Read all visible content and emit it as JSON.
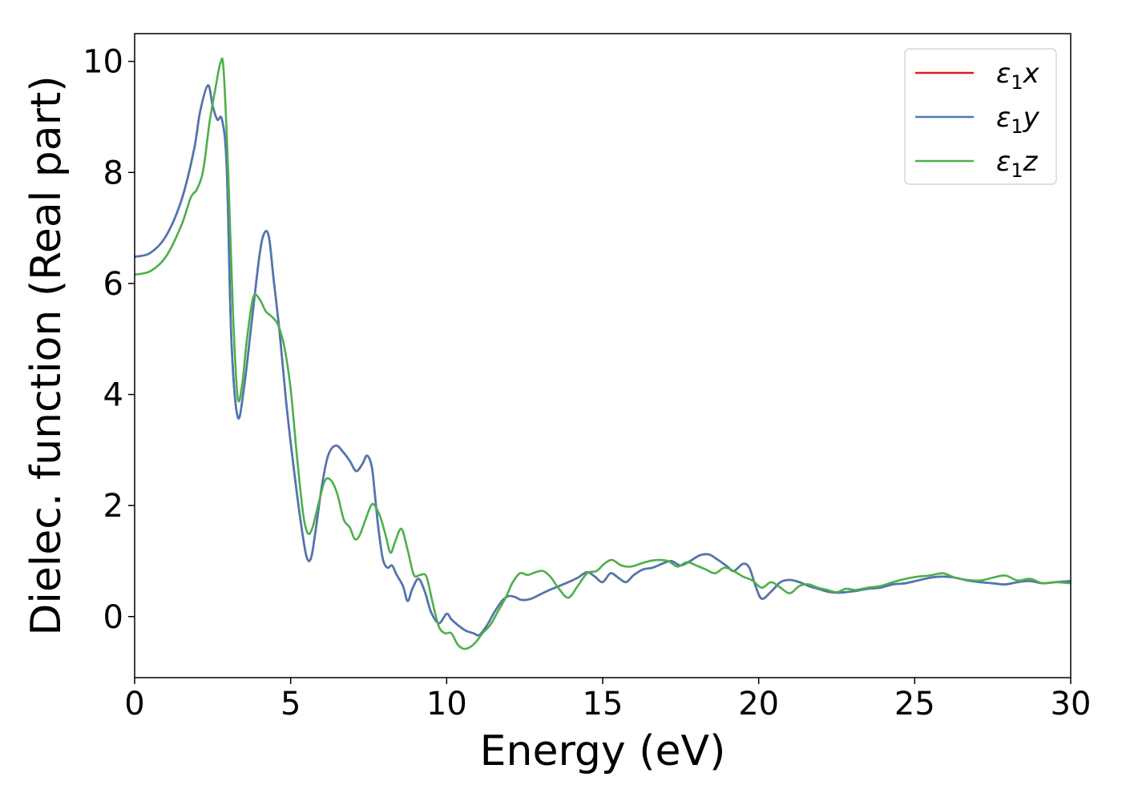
{
  "chart_data": {
    "type": "line",
    "xlabel": "Energy (eV)",
    "ylabel": "Dielec. function (Real part)",
    "xlim": [
      0,
      30
    ],
    "ylim": [
      -1.1,
      10.5
    ],
    "xticks": [
      0,
      5,
      10,
      15,
      20,
      25,
      30
    ],
    "yticks": [
      0,
      2,
      4,
      6,
      8,
      10
    ],
    "grid": false,
    "legend_position": "top-right",
    "series": [
      {
        "name": "ε1x",
        "legend_main": "ε",
        "legend_sub": "1",
        "legend_tail": "x",
        "color": "#e41a1c",
        "x": [
          0,
          0.5,
          1.0,
          1.5,
          1.9,
          2.1,
          2.35,
          2.5,
          2.65,
          2.8,
          2.95,
          3.1,
          3.3,
          3.5,
          3.75,
          4.0,
          4.15,
          4.3,
          4.45,
          4.65,
          4.85,
          5.05,
          5.3,
          5.5,
          5.65,
          5.8,
          6.0,
          6.2,
          6.45,
          6.7,
          6.9,
          7.1,
          7.3,
          7.45,
          7.6,
          7.7,
          7.8,
          7.95,
          8.1,
          8.25,
          8.4,
          8.6,
          8.75,
          8.9,
          9.1,
          9.3,
          9.5,
          9.75,
          10.0,
          10.15,
          10.35,
          10.6,
          10.85,
          11.05,
          11.3,
          11.55,
          11.8,
          12.0,
          12.2,
          12.4,
          12.7,
          13.0,
          13.3,
          13.6,
          13.9,
          14.2,
          14.5,
          14.75,
          15.0,
          15.25,
          15.5,
          15.75,
          16.0,
          16.3,
          16.6,
          16.9,
          17.2,
          17.5,
          17.8,
          18.1,
          18.4,
          18.7,
          19.0,
          19.2,
          19.5,
          19.7,
          19.9,
          20.1,
          20.4,
          20.7,
          21.0,
          21.3,
          21.6,
          21.9,
          22.2,
          22.5,
          22.8,
          23.1,
          23.5,
          23.9,
          24.3,
          24.7,
          25.1,
          25.5,
          25.9,
          26.3,
          26.7,
          27.1,
          27.5,
          27.9,
          28.3,
          28.7,
          29.1,
          29.5,
          30.0
        ],
        "y": [
          6.48,
          6.55,
          6.85,
          7.5,
          8.4,
          9.1,
          9.57,
          9.2,
          8.95,
          8.95,
          8.1,
          5.0,
          3.6,
          4.1,
          5.3,
          6.5,
          6.9,
          6.85,
          6.1,
          5.1,
          3.9,
          2.9,
          1.8,
          1.1,
          1.05,
          1.55,
          2.35,
          2.9,
          3.08,
          2.95,
          2.8,
          2.62,
          2.75,
          2.9,
          2.7,
          2.2,
          1.65,
          1.05,
          0.88,
          0.92,
          0.75,
          0.55,
          0.28,
          0.5,
          0.68,
          0.45,
          0.08,
          -0.12,
          0.05,
          -0.05,
          -0.15,
          -0.25,
          -0.3,
          -0.33,
          -0.15,
          0.1,
          0.3,
          0.37,
          0.35,
          0.3,
          0.32,
          0.4,
          0.48,
          0.55,
          0.62,
          0.7,
          0.8,
          0.72,
          0.62,
          0.78,
          0.7,
          0.62,
          0.75,
          0.85,
          0.88,
          0.95,
          1.0,
          0.92,
          1.0,
          1.1,
          1.12,
          1.02,
          0.9,
          0.82,
          0.95,
          0.88,
          0.55,
          0.32,
          0.45,
          0.62,
          0.66,
          0.62,
          0.55,
          0.5,
          0.45,
          0.43,
          0.44,
          0.46,
          0.5,
          0.52,
          0.58,
          0.6,
          0.65,
          0.7,
          0.72,
          0.7,
          0.65,
          0.62,
          0.6,
          0.58,
          0.62,
          0.64,
          0.6,
          0.62,
          0.64
        ]
      },
      {
        "name": "ε1y",
        "legend_main": "ε",
        "legend_sub": "1",
        "legend_tail": "y",
        "color": "#4a78b5",
        "x": [
          0,
          0.5,
          1.0,
          1.5,
          1.9,
          2.1,
          2.35,
          2.5,
          2.65,
          2.8,
          2.95,
          3.1,
          3.3,
          3.5,
          3.75,
          4.0,
          4.15,
          4.3,
          4.45,
          4.65,
          4.85,
          5.05,
          5.3,
          5.5,
          5.65,
          5.8,
          6.0,
          6.2,
          6.45,
          6.7,
          6.9,
          7.1,
          7.3,
          7.45,
          7.6,
          7.7,
          7.8,
          7.95,
          8.1,
          8.25,
          8.4,
          8.6,
          8.75,
          8.9,
          9.1,
          9.3,
          9.5,
          9.75,
          10.0,
          10.15,
          10.35,
          10.6,
          10.85,
          11.05,
          11.3,
          11.55,
          11.8,
          12.0,
          12.2,
          12.4,
          12.7,
          13.0,
          13.3,
          13.6,
          13.9,
          14.2,
          14.5,
          14.75,
          15.0,
          15.25,
          15.5,
          15.75,
          16.0,
          16.3,
          16.6,
          16.9,
          17.2,
          17.5,
          17.8,
          18.1,
          18.4,
          18.7,
          19.0,
          19.2,
          19.5,
          19.7,
          19.9,
          20.1,
          20.4,
          20.7,
          21.0,
          21.3,
          21.6,
          21.9,
          22.2,
          22.5,
          22.8,
          23.1,
          23.5,
          23.9,
          24.3,
          24.7,
          25.1,
          25.5,
          25.9,
          26.3,
          26.7,
          27.1,
          27.5,
          27.9,
          28.3,
          28.7,
          29.1,
          29.5,
          30.0
        ],
        "y": [
          6.48,
          6.55,
          6.85,
          7.5,
          8.4,
          9.1,
          9.57,
          9.2,
          8.95,
          8.95,
          8.1,
          5.0,
          3.6,
          4.1,
          5.3,
          6.5,
          6.9,
          6.85,
          6.1,
          5.1,
          3.9,
          2.9,
          1.8,
          1.1,
          1.05,
          1.55,
          2.35,
          2.9,
          3.08,
          2.95,
          2.8,
          2.62,
          2.75,
          2.9,
          2.7,
          2.2,
          1.65,
          1.05,
          0.88,
          0.92,
          0.75,
          0.55,
          0.28,
          0.5,
          0.68,
          0.45,
          0.08,
          -0.12,
          0.05,
          -0.05,
          -0.15,
          -0.25,
          -0.3,
          -0.33,
          -0.15,
          0.1,
          0.3,
          0.37,
          0.35,
          0.3,
          0.32,
          0.4,
          0.48,
          0.55,
          0.62,
          0.7,
          0.8,
          0.72,
          0.62,
          0.78,
          0.7,
          0.62,
          0.75,
          0.85,
          0.88,
          0.95,
          1.0,
          0.92,
          1.0,
          1.1,
          1.12,
          1.02,
          0.9,
          0.82,
          0.95,
          0.88,
          0.55,
          0.32,
          0.45,
          0.62,
          0.66,
          0.62,
          0.55,
          0.5,
          0.45,
          0.43,
          0.44,
          0.46,
          0.5,
          0.52,
          0.58,
          0.6,
          0.65,
          0.7,
          0.72,
          0.7,
          0.65,
          0.62,
          0.6,
          0.58,
          0.62,
          0.64,
          0.6,
          0.62,
          0.64
        ]
      },
      {
        "name": "ε1z",
        "legend_main": "ε",
        "legend_sub": "1",
        "legend_tail": "z",
        "color": "#4daf4a",
        "x": [
          0,
          0.5,
          1.0,
          1.5,
          1.8,
          2.0,
          2.2,
          2.4,
          2.6,
          2.75,
          2.85,
          3.0,
          3.15,
          3.3,
          3.45,
          3.6,
          3.8,
          4.0,
          4.2,
          4.4,
          4.6,
          4.8,
          5.0,
          5.2,
          5.4,
          5.55,
          5.7,
          5.9,
          6.1,
          6.3,
          6.5,
          6.7,
          6.9,
          7.05,
          7.2,
          7.4,
          7.6,
          7.75,
          7.9,
          8.05,
          8.2,
          8.35,
          8.55,
          8.75,
          8.95,
          9.15,
          9.35,
          9.55,
          9.75,
          9.95,
          10.15,
          10.35,
          10.55,
          10.75,
          10.95,
          11.15,
          11.4,
          11.65,
          11.9,
          12.1,
          12.35,
          12.6,
          12.85,
          13.1,
          13.35,
          13.6,
          13.9,
          14.2,
          14.5,
          14.8,
          15.05,
          15.3,
          15.6,
          15.9,
          16.2,
          16.5,
          16.8,
          17.1,
          17.4,
          17.7,
          18.0,
          18.3,
          18.6,
          18.9,
          19.2,
          19.5,
          19.8,
          20.1,
          20.4,
          20.7,
          21.0,
          21.3,
          21.6,
          21.9,
          22.2,
          22.5,
          22.8,
          23.1,
          23.5,
          23.9,
          24.3,
          24.7,
          25.1,
          25.5,
          25.9,
          26.3,
          26.7,
          27.1,
          27.5,
          27.9,
          28.3,
          28.7,
          29.1,
          29.5,
          30.0
        ],
        "y": [
          6.16,
          6.22,
          6.48,
          7.05,
          7.55,
          7.7,
          8.05,
          8.9,
          9.55,
          9.97,
          9.85,
          8.0,
          5.5,
          3.95,
          4.2,
          5.0,
          5.75,
          5.72,
          5.5,
          5.4,
          5.25,
          4.85,
          4.1,
          2.9,
          1.85,
          1.5,
          1.6,
          2.05,
          2.45,
          2.45,
          2.2,
          1.75,
          1.6,
          1.4,
          1.45,
          1.75,
          2.02,
          1.95,
          1.75,
          1.45,
          1.15,
          1.35,
          1.58,
          1.2,
          0.75,
          0.75,
          0.72,
          0.25,
          -0.18,
          -0.3,
          -0.3,
          -0.5,
          -0.58,
          -0.55,
          -0.45,
          -0.3,
          -0.15,
          0.1,
          0.35,
          0.6,
          0.78,
          0.75,
          0.8,
          0.82,
          0.7,
          0.5,
          0.34,
          0.55,
          0.78,
          0.82,
          0.95,
          1.02,
          0.92,
          0.9,
          0.95,
          1.0,
          1.02,
          1.0,
          0.9,
          0.98,
          0.92,
          0.85,
          0.78,
          0.88,
          0.82,
          0.72,
          0.65,
          0.52,
          0.62,
          0.52,
          0.42,
          0.55,
          0.58,
          0.52,
          0.48,
          0.44,
          0.5,
          0.48,
          0.52,
          0.55,
          0.62,
          0.68,
          0.72,
          0.74,
          0.78,
          0.7,
          0.66,
          0.65,
          0.7,
          0.74,
          0.65,
          0.68,
          0.6,
          0.62,
          0.6
        ]
      }
    ]
  }
}
